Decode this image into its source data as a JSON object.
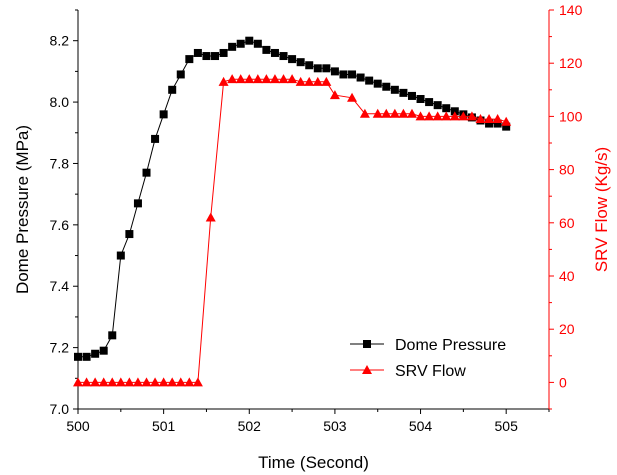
{
  "chart_data": {
    "type": "line",
    "xlabel": "Time (Second)",
    "ylabel": "Dome Pressure (MPa)",
    "y2label": "SRV Flow (Kg/s)",
    "xlim": [
      500,
      505.5
    ],
    "ylim": [
      7.0,
      8.3
    ],
    "y2lim": [
      -10,
      140
    ],
    "xticks": [
      "500",
      "501",
      "502",
      "503",
      "504",
      "505"
    ],
    "yticks": [
      "7.0",
      "7.2",
      "7.4",
      "7.6",
      "7.8",
      "8.0",
      "8.2"
    ],
    "y2ticks": [
      "0",
      "20",
      "40",
      "60",
      "80",
      "100",
      "120",
      "140"
    ],
    "grid": false,
    "legend_position": "bottom-right",
    "colors": {
      "dome": "#000000",
      "srv": "#ff0000"
    },
    "series": [
      {
        "name": "Dome Pressure",
        "axis": "left",
        "marker": "square",
        "x": [
          500.0,
          500.1,
          500.2,
          500.3,
          500.4,
          500.5,
          500.6,
          500.7,
          500.8,
          500.9,
          501.0,
          501.1,
          501.2,
          501.3,
          501.4,
          501.5,
          501.6,
          501.7,
          501.8,
          501.9,
          502.0,
          502.1,
          502.2,
          502.3,
          502.4,
          502.5,
          502.6,
          502.7,
          502.8,
          502.9,
          503.0,
          503.1,
          503.2,
          503.3,
          503.4,
          503.5,
          503.6,
          503.7,
          503.8,
          503.9,
          504.0,
          504.1,
          504.2,
          504.3,
          504.4,
          504.5,
          504.6,
          504.7,
          504.8,
          504.9,
          505.0
        ],
        "y": [
          7.17,
          7.17,
          7.18,
          7.19,
          7.24,
          7.5,
          7.57,
          7.67,
          7.77,
          7.88,
          7.96,
          8.04,
          8.09,
          8.14,
          8.16,
          8.15,
          8.15,
          8.16,
          8.18,
          8.19,
          8.2,
          8.19,
          8.17,
          8.16,
          8.15,
          8.14,
          8.13,
          8.12,
          8.11,
          8.11,
          8.1,
          8.09,
          8.09,
          8.08,
          8.07,
          8.06,
          8.05,
          8.04,
          8.03,
          8.02,
          8.01,
          8.0,
          7.99,
          7.98,
          7.97,
          7.96,
          7.95,
          7.94,
          7.93,
          7.93,
          7.92
        ]
      },
      {
        "name": "SRV Flow",
        "axis": "right",
        "marker": "triangle",
        "x": [
          500.0,
          500.1,
          500.2,
          500.3,
          500.4,
          500.5,
          500.6,
          500.7,
          500.8,
          500.9,
          501.0,
          501.1,
          501.2,
          501.3,
          501.4,
          501.55,
          501.7,
          501.8,
          501.9,
          502.0,
          502.1,
          502.2,
          502.3,
          502.4,
          502.5,
          502.6,
          502.7,
          502.8,
          502.9,
          503.0,
          503.2,
          503.35,
          503.5,
          503.6,
          503.7,
          503.8,
          503.9,
          504.0,
          504.1,
          504.2,
          504.3,
          504.4,
          504.5,
          504.6,
          504.7,
          504.8,
          504.9,
          505.0
        ],
        "y": [
          0,
          0,
          0,
          0,
          0,
          0,
          0,
          0,
          0,
          0,
          0,
          0,
          0,
          0,
          0,
          62,
          113,
          114,
          114,
          114,
          114,
          114,
          114,
          114,
          114,
          113,
          113,
          113,
          113,
          108,
          107,
          101,
          101,
          101,
          101,
          101,
          101,
          100,
          100,
          100,
          100,
          100,
          100,
          100,
          99,
          99,
          99,
          98
        ]
      }
    ]
  }
}
